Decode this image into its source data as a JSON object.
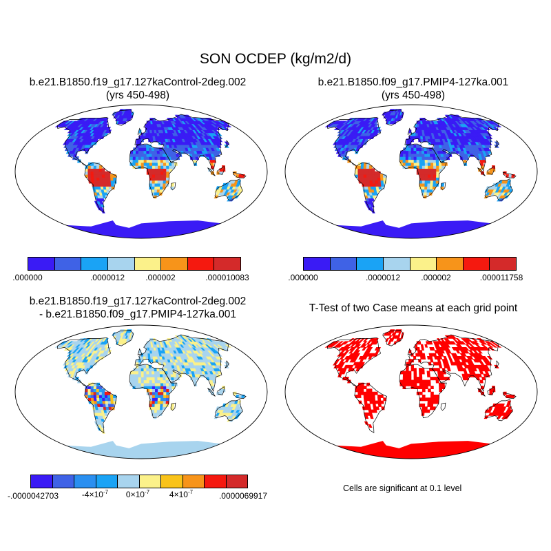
{
  "figure": {
    "title": "SON OCDEP (kg/m2/d)"
  },
  "panels": [
    {
      "title_line1": "b.e21.B1850.f19_g17.127kaControl-2deg.002",
      "title_line2": "(yrs 450-498)",
      "colorbar": {
        "colors": [
          "#3a1bf5",
          "#3f62e6",
          "#1aa3f5",
          "#a8d4ee",
          "#fbf18a",
          "#f7941a",
          "#f5190f",
          "#d42a2a"
        ],
        "labels": [
          ".000000",
          ".0000012",
          ".000002",
          ".000010083"
        ]
      }
    },
    {
      "title_line1": "b.e21.B1850.f09_g17.PMIP4-127ka.001",
      "title_line2": "(yrs 450-498)",
      "colorbar": {
        "colors": [
          "#3a1bf5",
          "#3f62e6",
          "#1aa3f5",
          "#a8d4ee",
          "#fbf18a",
          "#f7941a",
          "#f5190f",
          "#d42a2a"
        ],
        "labels": [
          ".000000",
          ".0000012",
          ".000002",
          ".000011758"
        ]
      }
    },
    {
      "title_line1": "b.e21.B1850.f19_g17.127kaControl-2deg.002",
      "title_line2": "- b.e21.B1850.f09_g17.PMIP4-127ka.001",
      "colorbar": {
        "colors": [
          "#3a1bf5",
          "#3f62e6",
          "#2a8ff0",
          "#1aa3f5",
          "#a8d4ee",
          "#fbf18a",
          "#f9c31a",
          "#f7941a",
          "#f5190f",
          "#d42a2a"
        ],
        "label_min": "-.0000042703",
        "label_a_coef": "-4×10",
        "label_b_coef": "0×10",
        "label_c_coef": "4×10",
        "exponent": "-7",
        "label_max": ".0000069917"
      }
    },
    {
      "title_line1": "T-Test of two Case means at each grid point",
      "significance_color": "#ff0000",
      "note": "Cells are significant at 0.1 level"
    }
  ],
  "palette": {
    "ocean": "#ffffff",
    "coastline": "#000000",
    "antarctica_abs": "#3a1bf5",
    "antarctica_diff": "#a8d4ee"
  }
}
